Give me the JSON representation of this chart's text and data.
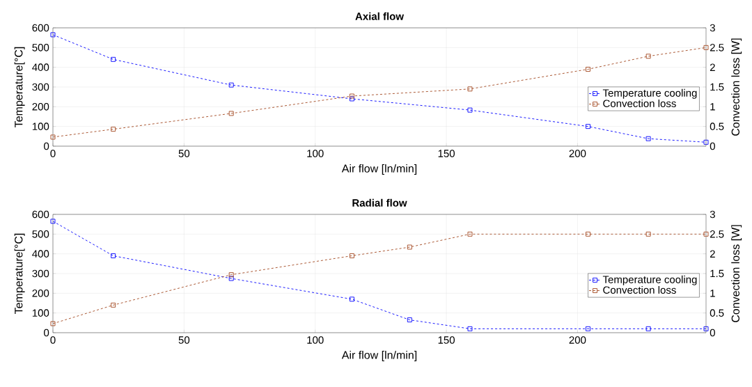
{
  "chart_data": [
    {
      "type": "line",
      "title": "Axial flow",
      "xlabel": "Air flow [ln/min]",
      "ylabel": "Temperature[°C]",
      "y2label": "Convection loss [W]",
      "x": [
        0,
        23,
        68,
        114,
        159,
        204,
        227,
        249
      ],
      "series": [
        {
          "name": "Temperature cooling",
          "color": "#0000ff",
          "values": [
            565,
            440,
            310,
            240,
            183,
            100,
            38,
            20
          ]
        },
        {
          "name": "Convection loss",
          "color": "#a2461e",
          "axis": "y2",
          "values": [
            0.23,
            0.43,
            0.83,
            1.27,
            1.45,
            1.95,
            2.28,
            2.5
          ]
        }
      ],
      "xlim": [
        0,
        249
      ],
      "xticks": [
        0,
        50,
        100,
        150,
        200
      ],
      "ylim": [
        0,
        600
      ],
      "yticks": [
        0,
        100,
        200,
        300,
        400,
        500,
        600
      ],
      "y2lim": [
        0,
        3
      ],
      "y2ticks": [
        0,
        0.5,
        1,
        1.5,
        2,
        2.5,
        3
      ],
      "grid": true,
      "legend": "right",
      "marker": "square",
      "line_style": "dashed"
    },
    {
      "type": "line",
      "title": "Radial flow",
      "xlabel": "Air flow [ln/min]",
      "ylabel": "Temperature[°C]",
      "y2label": "Convection loss [W]",
      "x": [
        0,
        23,
        68,
        114,
        136,
        159,
        204,
        227,
        249
      ],
      "series": [
        {
          "name": "Temperature cooling",
          "color": "#0000ff",
          "values": [
            565,
            390,
            275,
            170,
            65,
            20,
            20,
            20,
            20
          ]
        },
        {
          "name": "Convection loss",
          "color": "#a2461e",
          "axis": "y2",
          "values": [
            0.23,
            0.7,
            1.47,
            1.95,
            2.17,
            2.5,
            2.5,
            2.5,
            2.5
          ]
        }
      ],
      "xlim": [
        0,
        249
      ],
      "xticks": [
        0,
        50,
        100,
        150,
        200
      ],
      "ylim": [
        0,
        600
      ],
      "yticks": [
        0,
        100,
        200,
        300,
        400,
        500,
        600
      ],
      "y2lim": [
        0,
        3
      ],
      "y2ticks": [
        0,
        0.5,
        1,
        1.5,
        2,
        2.5,
        3
      ],
      "grid": true,
      "legend": "right",
      "marker": "square",
      "line_style": "dashed"
    }
  ]
}
